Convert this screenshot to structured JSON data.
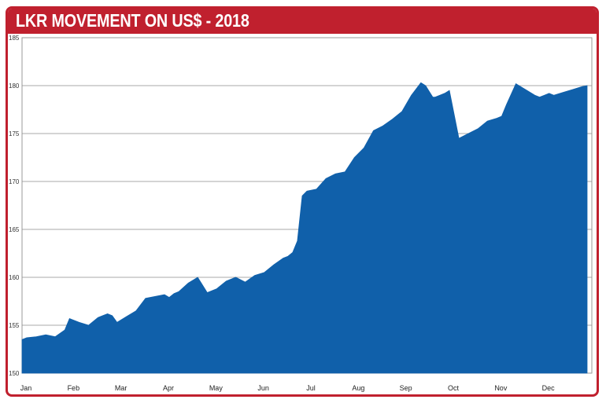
{
  "chart_data": {
    "type": "area",
    "title": "LKR MOVEMENT ON US$ - 2018",
    "xlabel": "",
    "ylabel": "",
    "ylim": [
      150,
      185
    ],
    "yticks": [
      150,
      155,
      160,
      165,
      170,
      175,
      180,
      185
    ],
    "categories": [
      "Jan",
      "Feb",
      "Mar",
      "Apr",
      "May",
      "Jun",
      "Jul",
      "Aug",
      "Sep",
      "Oct",
      "Nov",
      "Dec"
    ],
    "grid": true,
    "legend": "none",
    "fill_color": "#1060aa",
    "accent_color": "#c0202e",
    "x": [
      0,
      0.1,
      0.3,
      0.5,
      0.7,
      0.9,
      1.0,
      1.2,
      1.4,
      1.6,
      1.8,
      1.9,
      2.0,
      2.2,
      2.4,
      2.6,
      2.8,
      3.0,
      3.1,
      3.2,
      3.3,
      3.5,
      3.7,
      3.9,
      4.1,
      4.3,
      4.5,
      4.7,
      4.9,
      5.1,
      5.3,
      5.5,
      5.6,
      5.7,
      5.8,
      5.9,
      6.0,
      6.2,
      6.4,
      6.6,
      6.8,
      7.0,
      7.2,
      7.4,
      7.6,
      7.8,
      8.0,
      8.2,
      8.4,
      8.5,
      8.6,
      8.65,
      8.7,
      8.8,
      8.9,
      9.0,
      9.2,
      9.4,
      9.6,
      9.8,
      10.0,
      10.1,
      10.2,
      10.4,
      10.6,
      10.8,
      10.9,
      11.0,
      11.1,
      11.2,
      11.4,
      11.6,
      11.8,
      11.9
    ],
    "values": [
      153.5,
      153.7,
      153.8,
      154.0,
      153.8,
      154.5,
      155.7,
      155.3,
      155.0,
      155.8,
      156.2,
      156.0,
      155.3,
      155.9,
      156.5,
      157.8,
      158.0,
      158.2,
      157.9,
      158.3,
      158.5,
      159.4,
      160.0,
      158.4,
      158.8,
      159.6,
      160.0,
      159.5,
      160.2,
      160.5,
      161.3,
      162.0,
      162.2,
      162.6,
      163.8,
      168.5,
      169.0,
      169.2,
      170.3,
      170.8,
      171.0,
      172.5,
      173.5,
      175.3,
      175.8,
      176.5,
      177.3,
      179.0,
      180.3,
      180.0,
      179.2,
      178.8,
      178.8,
      179.0,
      179.2,
      179.5,
      174.5,
      175.0,
      175.5,
      176.3,
      176.6,
      176.8,
      178.0,
      180.2,
      179.6,
      179.0,
      178.8,
      179.0,
      179.2,
      179.0,
      179.3,
      179.6,
      179.9,
      180.0
    ]
  }
}
